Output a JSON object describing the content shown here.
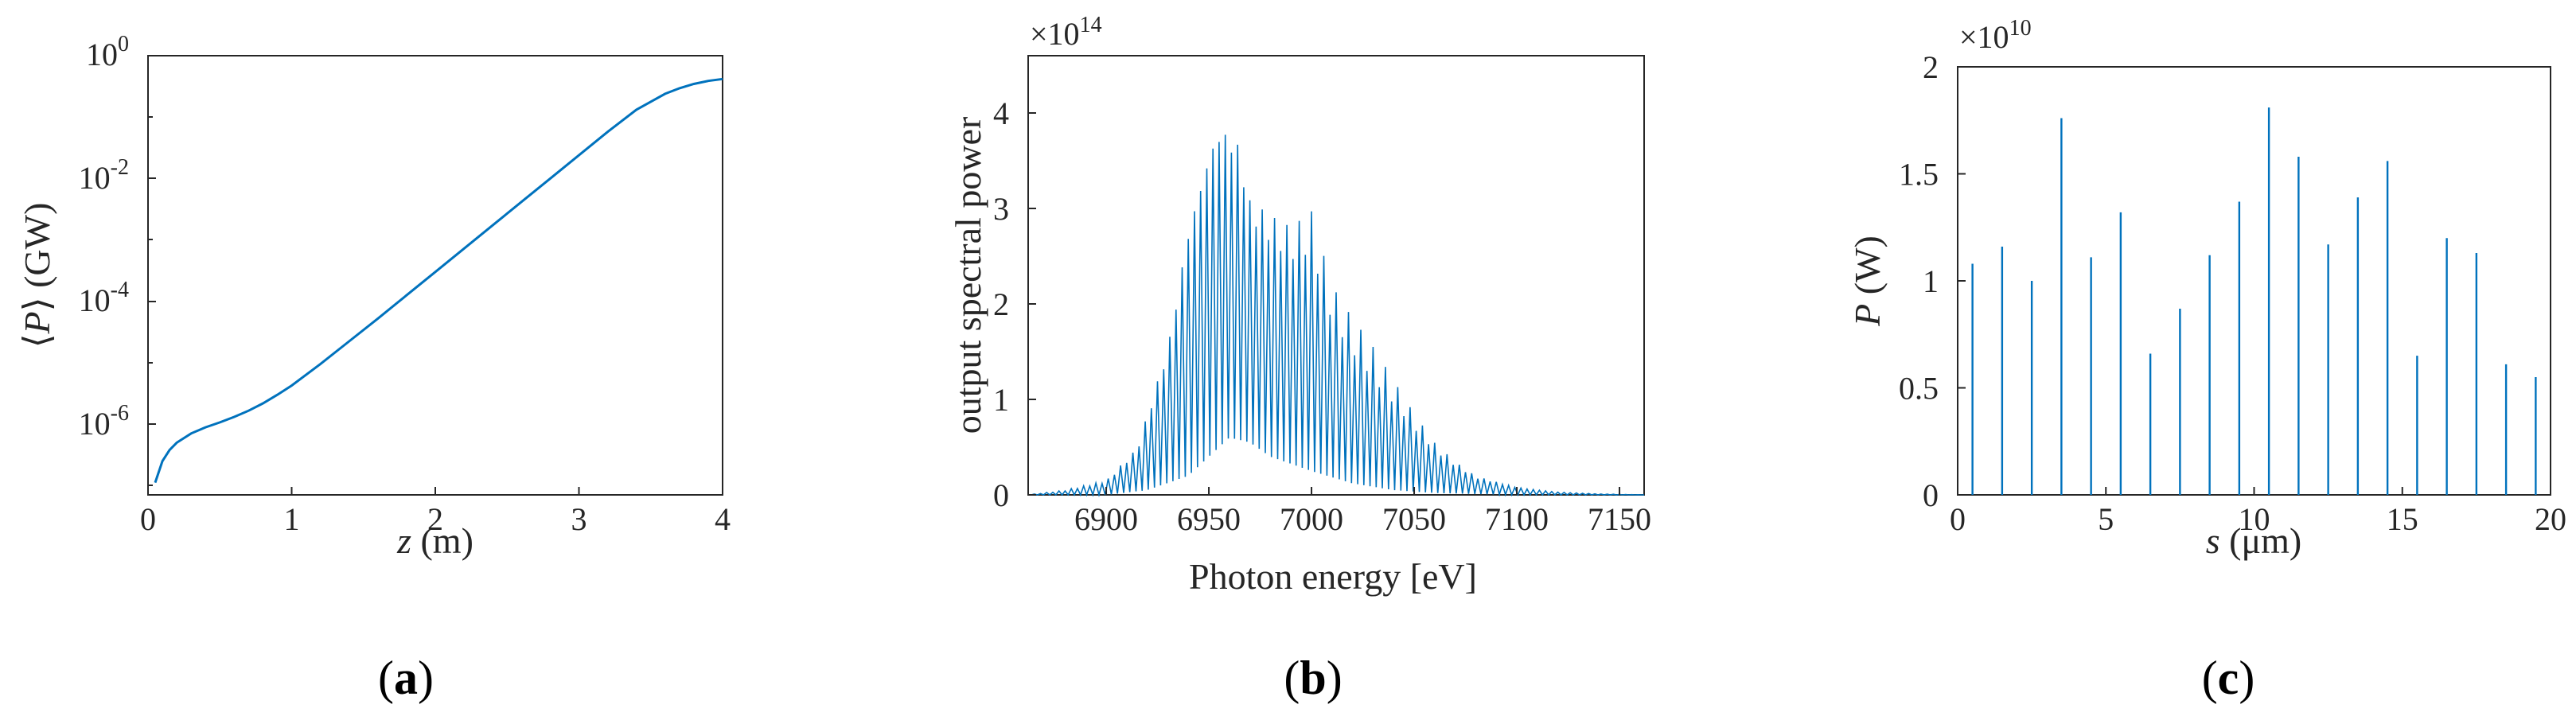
{
  "colors": {
    "series": "#0072BD",
    "axis": "#262626"
  },
  "panels": [
    {
      "caption_open": "(",
      "caption_letter": "a",
      "caption_close": ")",
      "xlabel_var": "z",
      "xlabel_unit": " (m)",
      "ylabel_pre": "⟨",
      "ylabel_var": "P",
      "ylabel_post": "⟩ (GW)",
      "yticks": [
        {
          "base": "10",
          "exp": "0"
        },
        {
          "base": "10",
          "exp": "-2"
        },
        {
          "base": "10",
          "exp": "-4"
        },
        {
          "base": "10",
          "exp": "-6"
        }
      ]
    },
    {
      "caption_open": "(",
      "caption_letter": "b",
      "caption_close": ")",
      "xlabel": "Photon energy [eV]",
      "ylabel": "output spectral power",
      "multiplier_base": "×10",
      "multiplier_exp": "14"
    },
    {
      "caption_open": "(",
      "caption_letter": "c",
      "caption_close": ")",
      "xlabel_var": "s",
      "xlabel_unit": " (μm)",
      "ylabel_var": "P",
      "ylabel_unit": " (W)",
      "multiplier_base": "×10",
      "multiplier_exp": "10"
    }
  ],
  "chart_data": [
    {
      "type": "line",
      "xlabel": "z (m)",
      "ylabel": "⟨P⟩ (GW)",
      "xlim": [
        0,
        4
      ],
      "ylim_log10": [
        -7.15,
        0
      ],
      "yscale": "log",
      "grid": false,
      "xticks": [
        0,
        1,
        2,
        3,
        4
      ],
      "ytick_exponents": [
        0,
        -2,
        -4,
        -6
      ],
      "x": [
        0.05,
        0.1,
        0.15,
        0.2,
        0.3,
        0.4,
        0.5,
        0.6,
        0.7,
        0.8,
        0.9,
        1.0,
        1.2,
        1.4,
        1.6,
        1.8,
        2.0,
        2.2,
        2.4,
        2.6,
        2.8,
        3.0,
        3.2,
        3.4,
        3.6,
        3.7,
        3.8,
        3.9,
        4.0
      ],
      "log10_y": [
        -6.95,
        -6.6,
        -6.42,
        -6.3,
        -6.15,
        -6.05,
        -5.97,
        -5.88,
        -5.78,
        -5.66,
        -5.52,
        -5.37,
        -5.02,
        -4.65,
        -4.28,
        -3.9,
        -3.52,
        -3.14,
        -2.76,
        -2.38,
        -2.0,
        -1.62,
        -1.24,
        -0.88,
        -0.62,
        -0.53,
        -0.46,
        -0.41,
        -0.38
      ]
    },
    {
      "type": "line",
      "xlabel": "Photon energy [eV]",
      "ylabel": "output spectral power",
      "xlim": [
        6862,
        7162
      ],
      "ylim": [
        0,
        4.6
      ],
      "y_multiplier": "1e14",
      "grid": false,
      "xticks": [
        6900,
        6950,
        7000,
        7050,
        7100,
        7150
      ],
      "yticks": [
        0,
        1,
        2,
        3,
        4
      ],
      "envelope": {
        "x": [
          6862,
          6880,
          6900,
          6915,
          6930,
          6940,
          6950,
          6955,
          6960,
          6965,
          6970,
          6980,
          6990,
          7000,
          7010,
          7020,
          7030,
          7040,
          7050,
          7060,
          7070,
          7080,
          7100,
          7120,
          7140,
          7162
        ],
        "y": [
          0.0,
          0.05,
          0.15,
          0.5,
          1.6,
          2.9,
          3.75,
          4.0,
          3.95,
          3.8,
          3.2,
          3.0,
          2.85,
          3.0,
          2.2,
          1.85,
          1.55,
          1.2,
          0.85,
          0.55,
          0.35,
          0.2,
          0.08,
          0.03,
          0.01,
          0.0
        ]
      },
      "trough": {
        "x": [
          6862,
          6900,
          6920,
          6940,
          6960,
          6970,
          6980,
          7000,
          7020,
          7040,
          7060,
          7100,
          7162
        ],
        "y": [
          0.0,
          0.0,
          0.05,
          0.2,
          0.6,
          0.55,
          0.4,
          0.25,
          0.12,
          0.05,
          0.02,
          0.0,
          0.0
        ]
      }
    },
    {
      "type": "line",
      "xlabel": "s (μm)",
      "ylabel": "P (W)",
      "xlim": [
        0,
        20
      ],
      "ylim": [
        0,
        2
      ],
      "y_multiplier": "1e10",
      "grid": false,
      "xticks": [
        0,
        5,
        10,
        15,
        20
      ],
      "yticks": [
        0,
        0.5,
        1,
        1.5,
        2
      ],
      "spike_positions": [
        0.5,
        1.5,
        2.5,
        3.5,
        4.5,
        5.5,
        6.5,
        7.5,
        8.5,
        9.5,
        10.5,
        11.5,
        12.5,
        13.5,
        14.5,
        15.5,
        16.5,
        17.5,
        18.5,
        19.5
      ],
      "spike_peaks": [
        1.08,
        1.16,
        1.0,
        1.76,
        1.11,
        1.32,
        0.66,
        0.87,
        1.12,
        1.37,
        1.81,
        1.58,
        1.17,
        1.39,
        1.56,
        0.65,
        1.2,
        1.13,
        0.61,
        0.55
      ]
    }
  ]
}
